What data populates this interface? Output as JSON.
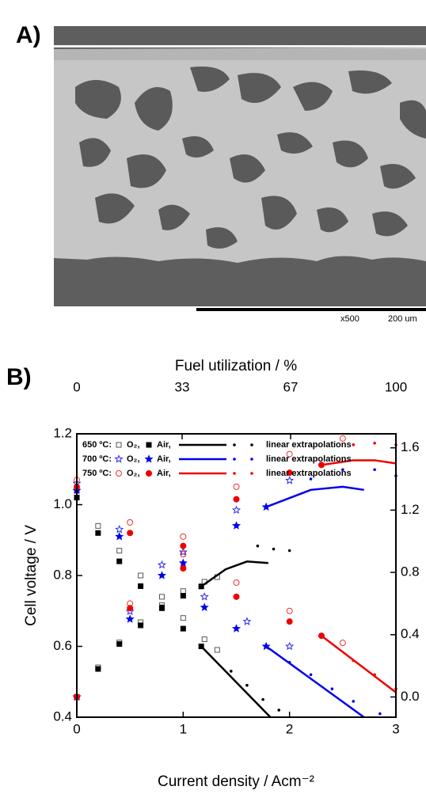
{
  "panel_a": {
    "label": "A)",
    "magnification": "x500",
    "scale_bar": "200 um"
  },
  "chart_data": {
    "type": "line",
    "label": "B)",
    "xlabel": "Current density / Acm⁻²",
    "ylabel": "Cell voltage / V",
    "x2label": "Fuel utilization / %",
    "xlim": [
      0,
      3
    ],
    "xticks": [
      0,
      1,
      2,
      3
    ],
    "ylim": [
      0.4,
      1.2
    ],
    "yticks": [
      0.4,
      0.6,
      0.8,
      {
        "value": 1.0,
        "label": "1.0"
      },
      1.2
    ],
    "x2lim": [
      0,
      100
    ],
    "x2ticks": [
      0,
      33,
      67,
      100
    ],
    "y2lim": [
      -0.13,
      1.69
    ],
    "y2ticks": [
      {
        "value": 0,
        "label": "0.0"
      },
      0.4,
      0.8,
      1.2,
      1.6
    ],
    "legend": [
      {
        "temperature": "650 ºC:",
        "oxygen": "O₂,",
        "air": "Air,",
        "extrapolation": "linear extrapolations"
      },
      {
        "temperature": "700 ºC:",
        "oxygen": "O₂,",
        "air": "Air,",
        "extrapolation": "linear extrapolations"
      },
      {
        "temperature": "750 ºC:",
        "oxygen": "O₂,",
        "air": "Air,",
        "extrapolation": "linear extrapolations"
      }
    ],
    "series": [
      {
        "color": "#555555",
        "marker": "open-square",
        "axis": "y",
        "x": [
          0,
          0.2,
          0.4,
          0.6,
          0.8,
          1.0,
          1.2,
          1.32
        ],
        "values": [
          1.04,
          0.94,
          0.87,
          0.8,
          0.74,
          0.68,
          0.62,
          0.59
        ]
      },
      {
        "color": "#000000",
        "marker": "square",
        "axis": "y",
        "x": [
          0,
          0.2,
          0.4,
          0.6,
          0.8,
          1.0,
          1.17
        ],
        "values": [
          1.02,
          0.92,
          0.84,
          0.77,
          0.71,
          0.65,
          0.6
        ]
      },
      {
        "color": "#000000",
        "marker": "line",
        "axis": "y",
        "x": [
          1.17,
          1.82
        ],
        "values": [
          0.6,
          0.4
        ]
      },
      {
        "color": "#000000",
        "marker": "dots",
        "axis": "y",
        "x": [
          1.45,
          1.6,
          1.75,
          1.9
        ],
        "values": [
          0.53,
          0.49,
          0.45,
          0.42
        ]
      },
      {
        "color": "#555555",
        "marker": "open-square",
        "axis": "y2",
        "x": [
          0,
          0.2,
          0.4,
          0.6,
          0.8,
          1.0,
          1.2,
          1.32
        ],
        "values": [
          0,
          0.19,
          0.35,
          0.48,
          0.59,
          0.68,
          0.74,
          0.77
        ]
      },
      {
        "color": "#000000",
        "marker": "square",
        "axis": "y2",
        "x": [
          0,
          0.2,
          0.4,
          0.6,
          0.8,
          1.0,
          1.17
        ],
        "values": [
          0,
          0.18,
          0.34,
          0.46,
          0.57,
          0.65,
          0.71
        ]
      },
      {
        "color": "#000000",
        "marker": "line",
        "axis": "y2",
        "x": [
          1.17,
          1.4,
          1.6,
          1.8
        ],
        "values": [
          0.71,
          0.82,
          0.87,
          0.86
        ]
      },
      {
        "color": "#000000",
        "marker": "dots",
        "axis": "y2",
        "x": [
          1.7,
          1.85,
          2.0
        ],
        "values": [
          0.97,
          0.95,
          0.94
        ]
      },
      {
        "color": "#2a2aee",
        "marker": "open-star",
        "axis": "y",
        "x": [
          0,
          0.4,
          0.8,
          1.2,
          1.6,
          2.0
        ],
        "values": [
          1.06,
          0.93,
          0.83,
          0.74,
          0.67,
          0.6
        ]
      },
      {
        "color": "#0000ee",
        "marker": "star",
        "axis": "y",
        "x": [
          0,
          0.4,
          0.8,
          1.2,
          1.5,
          1.78
        ],
        "values": [
          1.04,
          0.91,
          0.8,
          0.71,
          0.65,
          0.6
        ]
      },
      {
        "color": "#0000ee",
        "marker": "line",
        "axis": "y",
        "x": [
          1.78,
          2.7
        ],
        "values": [
          0.6,
          0.4
        ]
      },
      {
        "color": "#0000ee",
        "marker": "dots",
        "axis": "y",
        "x": [
          2.0,
          2.2,
          2.4,
          2.6,
          2.85
        ],
        "values": [
          0.555,
          0.52,
          0.48,
          0.445,
          0.41
        ]
      },
      {
        "color": "#2a2aee",
        "marker": "open-star",
        "axis": "y2",
        "x": [
          0,
          0.5,
          1.0,
          1.5,
          2.0
        ],
        "values": [
          0,
          0.55,
          0.93,
          1.2,
          1.39
        ]
      },
      {
        "color": "#0000ee",
        "marker": "star",
        "axis": "y2",
        "x": [
          0,
          0.5,
          1.0,
          1.5,
          1.78
        ],
        "values": [
          0,
          0.5,
          0.86,
          1.1,
          1.22
        ]
      },
      {
        "color": "#0000ee",
        "marker": "line",
        "axis": "y2",
        "x": [
          1.78,
          2.2,
          2.5,
          2.7
        ],
        "values": [
          1.22,
          1.33,
          1.35,
          1.33
        ]
      },
      {
        "color": "#0000ee",
        "marker": "dots",
        "axis": "y2",
        "x": [
          2.2,
          2.5,
          2.8,
          3.0
        ],
        "values": [
          1.4,
          1.46,
          1.46,
          1.42
        ]
      },
      {
        "color": "#ee3333",
        "marker": "open-circle",
        "axis": "y",
        "x": [
          0,
          0.5,
          1.0,
          1.5,
          2.0,
          2.5
        ],
        "values": [
          1.07,
          0.95,
          0.86,
          0.78,
          0.7,
          0.61
        ]
      },
      {
        "color": "#ee0000",
        "marker": "circle",
        "axis": "y",
        "x": [
          0,
          0.5,
          1.0,
          1.5,
          2.0,
          2.3
        ],
        "values": [
          1.05,
          0.92,
          0.82,
          0.74,
          0.67,
          0.63
        ]
      },
      {
        "color": "#ee0000",
        "marker": "line",
        "axis": "y",
        "x": [
          2.3,
          3.0
        ],
        "values": [
          0.63,
          0.47
        ]
      },
      {
        "color": "#ee0000",
        "marker": "dots",
        "axis": "y",
        "x": [
          2.6,
          2.8,
          3.0
        ],
        "values": [
          0.56,
          0.52,
          0.48
        ]
      },
      {
        "color": "#ee3333",
        "marker": "open-circle",
        "axis": "y2",
        "x": [
          0,
          0.5,
          1.0,
          1.5,
          2.0,
          2.5
        ],
        "values": [
          0,
          0.6,
          1.03,
          1.35,
          1.56,
          1.66
        ]
      },
      {
        "color": "#ee0000",
        "marker": "circle",
        "axis": "y2",
        "x": [
          0,
          0.5,
          1.0,
          1.5,
          2.0,
          2.3
        ],
        "values": [
          0,
          0.57,
          0.97,
          1.27,
          1.44,
          1.49
        ]
      },
      {
        "color": "#ee0000",
        "marker": "line",
        "axis": "y2",
        "x": [
          2.3,
          2.6,
          2.8,
          3.0
        ],
        "values": [
          1.49,
          1.52,
          1.52,
          1.5
        ]
      },
      {
        "color": "#ee0000",
        "marker": "dots",
        "axis": "y2",
        "x": [
          2.6,
          2.8,
          3.0
        ],
        "values": [
          1.62,
          1.63,
          1.62
        ]
      }
    ]
  }
}
